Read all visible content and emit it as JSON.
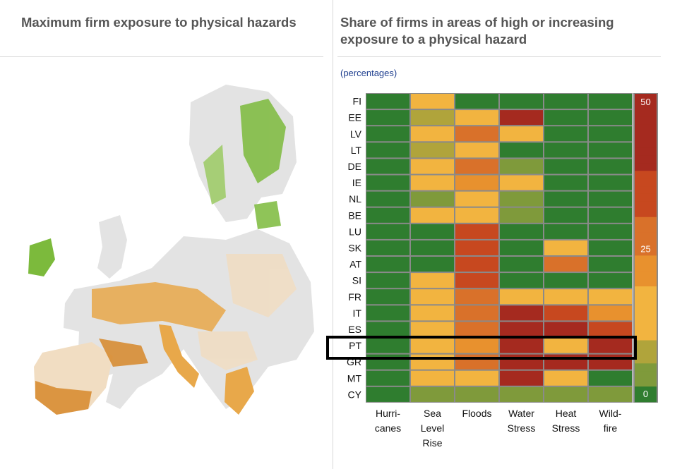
{
  "left_panel": {
    "title": "Maximum firm exposure to physical hazards"
  },
  "right_panel": {
    "title": "Share of firms in areas of high or increasing exposure to a physical hazard",
    "subtitle": "(percentages)"
  },
  "map": {
    "colors": {
      "land": "#e3e3e3",
      "low": "#f1ddc2",
      "medium": "#e8a84a",
      "high": "#d7882a",
      "green": "#7cba3c"
    }
  },
  "chart_data": {
    "type": "heatmap",
    "title": "Share of firms in areas of high or increasing exposure to a physical hazard",
    "subtitle": "(percentages)",
    "rows": [
      "FI",
      "EE",
      "LV",
      "LT",
      "DE",
      "IE",
      "NL",
      "BE",
      "LU",
      "SK",
      "AT",
      "SI",
      "FR",
      "IT",
      "ES",
      "PT",
      "GR",
      "MT",
      "CY"
    ],
    "columns": [
      [
        "Hurri-",
        "canes"
      ],
      [
        "Sea",
        "Level",
        "Rise"
      ],
      [
        "Floods"
      ],
      [
        "Water",
        "Stress"
      ],
      [
        "Heat",
        "Stress"
      ],
      [
        "Wild-",
        "fire"
      ]
    ],
    "values": [
      [
        0,
        18,
        0,
        0,
        0,
        0
      ],
      [
        0,
        8,
        18,
        45,
        0,
        0
      ],
      [
        0,
        18,
        28,
        15,
        0,
        0
      ],
      [
        0,
        8,
        18,
        0,
        0,
        0
      ],
      [
        0,
        18,
        28,
        3,
        0,
        0
      ],
      [
        0,
        18,
        22,
        14,
        0,
        0
      ],
      [
        0,
        5,
        18,
        6,
        0,
        0
      ],
      [
        0,
        18,
        18,
        5,
        0,
        0
      ],
      [
        0,
        0,
        32,
        0,
        0,
        0
      ],
      [
        0,
        0,
        35,
        0,
        18,
        0
      ],
      [
        0,
        0,
        37,
        0,
        28,
        0
      ],
      [
        0,
        18,
        35,
        0,
        0,
        0
      ],
      [
        0,
        18,
        25,
        18,
        18,
        18
      ],
      [
        0,
        18,
        28,
        45,
        32,
        22
      ],
      [
        0,
        18,
        28,
        45,
        45,
        32
      ],
      [
        0,
        18,
        22,
        45,
        18,
        45
      ],
      [
        0,
        18,
        28,
        45,
        42,
        45
      ],
      [
        0,
        18,
        18,
        45,
        18,
        0
      ],
      [
        0,
        6,
        5,
        6,
        6,
        6
      ]
    ],
    "scale": {
      "min": 0,
      "max": 50,
      "tick_labels": [
        "50",
        "25",
        "0"
      ]
    },
    "highlight_row": "PT",
    "colors": {
      "green": "#2f7d2f",
      "olive": "#7f9a3b",
      "khaki": "#b0a43b",
      "yellow": "#f2b440",
      "orange": "#e8912e",
      "dark_orange": "#d9712a",
      "red_orange": "#c7481f",
      "red": "#a52a1f",
      "grid": "#8a8a8a"
    }
  }
}
